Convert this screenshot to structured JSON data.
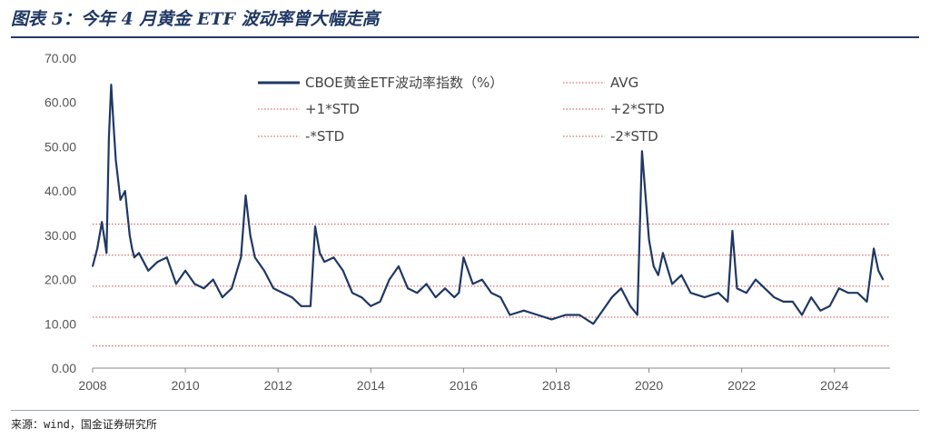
{
  "title": "图表 5：今年 4 月黄金 ETF 波动率曾大幅走高",
  "source": "来源：wind，国金证券研究所",
  "colors": {
    "series": "#1f3864",
    "band": "#d24b4b",
    "axis": "#888888"
  },
  "chart_data": {
    "type": "line",
    "title": "",
    "xlabel": "",
    "ylabel": "",
    "xlim": [
      2008,
      2025.2
    ],
    "ylim": [
      0,
      70
    ],
    "x_ticks": [
      "2008",
      "2010",
      "2012",
      "2014",
      "2016",
      "2018",
      "2020",
      "2022",
      "2024"
    ],
    "y_ticks": [
      "0.00",
      "10.00",
      "20.00",
      "30.00",
      "40.00",
      "50.00",
      "60.00",
      "70.00"
    ],
    "grid": false,
    "legend_position": "top-center",
    "series": [
      {
        "name": "CBOE黄金ETF波动率指数（%）",
        "x": [
          2008.0,
          2008.1,
          2008.2,
          2008.3,
          2008.35,
          2008.4,
          2008.45,
          2008.5,
          2008.6,
          2008.7,
          2008.8,
          2008.85,
          2008.9,
          2009.0,
          2009.2,
          2009.4,
          2009.6,
          2009.8,
          2010.0,
          2010.2,
          2010.4,
          2010.6,
          2010.8,
          2011.0,
          2011.2,
          2011.3,
          2011.4,
          2011.5,
          2011.7,
          2011.9,
          2012.1,
          2012.3,
          2012.5,
          2012.7,
          2012.8,
          2012.9,
          2013.0,
          2013.2,
          2013.4,
          2013.6,
          2013.8,
          2014.0,
          2014.2,
          2014.4,
          2014.6,
          2014.8,
          2015.0,
          2015.2,
          2015.4,
          2015.6,
          2015.8,
          2015.9,
          2016.0,
          2016.2,
          2016.4,
          2016.6,
          2016.8,
          2017.0,
          2017.3,
          2017.6,
          2017.9,
          2018.2,
          2018.5,
          2018.8,
          2019.0,
          2019.2,
          2019.4,
          2019.6,
          2019.75,
          2019.85,
          2020.0,
          2020.1,
          2020.2,
          2020.3,
          2020.5,
          2020.7,
          2020.9,
          2021.2,
          2021.5,
          2021.7,
          2021.8,
          2021.9,
          2022.1,
          2022.3,
          2022.5,
          2022.7,
          2022.9,
          2023.1,
          2023.3,
          2023.5,
          2023.7,
          2023.9,
          2024.1,
          2024.3,
          2024.5,
          2024.7,
          2024.85,
          2024.95,
          2025.05
        ],
        "y": [
          23,
          27,
          33,
          26,
          52,
          64,
          55,
          47,
          38,
          40,
          30,
          27,
          25,
          26,
          22,
          24,
          25,
          19,
          22,
          19,
          18,
          20,
          16,
          18,
          25,
          39,
          30,
          25,
          22,
          18,
          17,
          16,
          14,
          14,
          32,
          26,
          24,
          25,
          22,
          17,
          16,
          14,
          15,
          20,
          23,
          18,
          17,
          19,
          16,
          18,
          16,
          17,
          25,
          19,
          20,
          17,
          16,
          12,
          13,
          12,
          11,
          12,
          12,
          10,
          13,
          16,
          18,
          14,
          12,
          49,
          29,
          23,
          21,
          26,
          19,
          21,
          17,
          16,
          17,
          15,
          31,
          18,
          17,
          20,
          18,
          16,
          15,
          15,
          12,
          16,
          13,
          14,
          18,
          17,
          17,
          15,
          27,
          22,
          20
        ]
      }
    ],
    "legend": [
      {
        "label": "CBOE黄金ETF波动率指数（%）",
        "style": "series"
      },
      {
        "label": "AVG",
        "style": "dotted"
      },
      {
        "label": "+1*STD",
        "style": "dotted"
      },
      {
        "label": "+2*STD",
        "style": "dotted"
      },
      {
        "label": "-*STD",
        "style": "dotted"
      },
      {
        "label": "-2*STD",
        "style": "dotted"
      }
    ],
    "reference_lines": [
      {
        "name": "+2*STD",
        "y": 32.5
      },
      {
        "name": "+1*STD",
        "y": 25.5
      },
      {
        "name": "AVG",
        "y": 18.5
      },
      {
        "name": "-*STD",
        "y": 11.5
      },
      {
        "name": "-2*STD",
        "y": 5
      }
    ]
  }
}
